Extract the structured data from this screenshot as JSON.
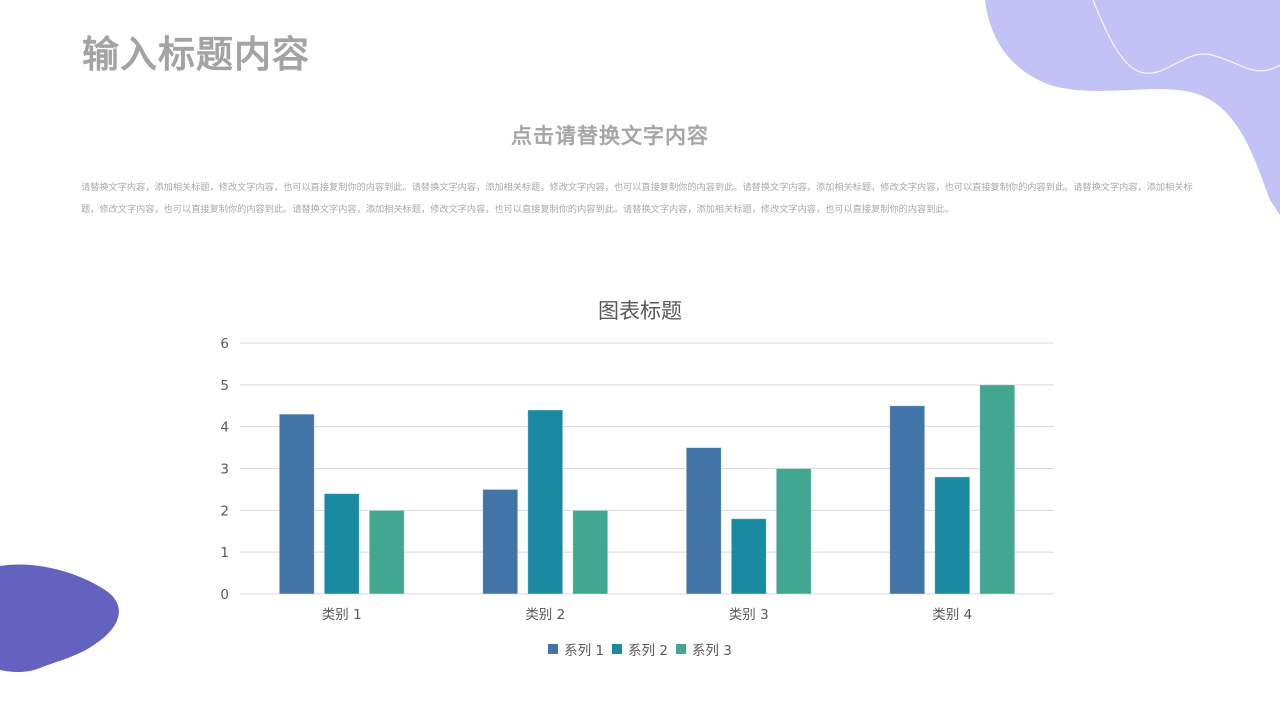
{
  "page": {
    "title": "输入标题内容",
    "subtitle": "点击请替换文字内容",
    "body_text": "请替换文字内容，添加相关标题，修改文字内容，也可以直接复制你的内容到此。请替换文字内容，添加相关标题，修改文字内容，也可以直接复制你的内容到此。请替换文字内容，添加相关标题，修改文字内容，也可以直接复制你的内容到此。请替换文字内容，添加相关标题，修改文字内容，也可以直接复制你的内容到此。请替换文字内容，添加相关标题，修改文字内容，也可以直接复制你的内容到此。请替换文字内容，添加相关标题，修改文字内容，也可以直接复制你的内容到此。"
  },
  "colors": {
    "blob_top_right": "#c3c2f7",
    "blob_bottom_left": "#6462bf",
    "grid": "#d9d9d9",
    "axis_text": "#595959"
  },
  "chart_data": {
    "type": "bar",
    "title": "图表标题",
    "xlabel": "",
    "ylabel": "",
    "categories": [
      "类别 1",
      "类别 2",
      "类别 3",
      "类别 4"
    ],
    "series": [
      {
        "name": "系列 1",
        "color": "#4374a8",
        "values": [
          4.3,
          2.5,
          3.5,
          4.5
        ]
      },
      {
        "name": "系列 2",
        "color": "#1a8aa3",
        "values": [
          2.4,
          4.4,
          1.8,
          2.8
        ]
      },
      {
        "name": "系列 3",
        "color": "#42a691",
        "values": [
          2.0,
          2.0,
          3.0,
          5.0
        ]
      }
    ],
    "ylim": [
      0,
      6
    ],
    "yticks": [
      0,
      1,
      2,
      3,
      4,
      5,
      6
    ],
    "grid": true,
    "legend_position": "bottom"
  }
}
